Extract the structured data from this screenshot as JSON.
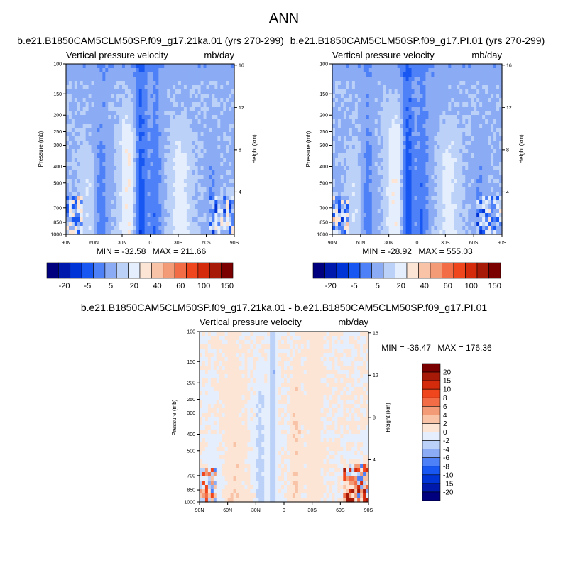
{
  "page_title": "ANN",
  "chart_data": [
    {
      "type": "heatmap",
      "title": "b.e21.B1850CAM5CLM50SP.f09_g17.21ka.01 (yrs 270-299)",
      "subtitle_left": "Vertical pressure velocity",
      "subtitle_right": "mb/day",
      "ylabel": "Pressure (mb)",
      "ylabel_right": "Height (km)",
      "x_ticks": [
        "90N",
        "60N",
        "30N",
        "0",
        "30S",
        "60S",
        "90S"
      ],
      "y_ticks": [
        "100",
        "150",
        "200",
        "250",
        "300",
        "400",
        "500",
        "700",
        "850",
        "1000"
      ],
      "y_ticks_right": [
        "16",
        "12",
        "8",
        "4"
      ],
      "stats": {
        "min_label": "MIN =",
        "min": "-32.58",
        "max_label": "MAX =",
        "max": "211.66"
      },
      "colorbar": {
        "orientation": "horizontal",
        "labels": [
          "-20",
          "-5",
          "5",
          "20",
          "40",
          "60",
          "100",
          "150"
        ],
        "colors": [
          "#00007f",
          "#0019ad",
          "#0034d6",
          "#1857f2",
          "#4e81f7",
          "#8bacf5",
          "#bcd1f8",
          "#e5eefc",
          "#fde5d6",
          "#f8c3a6",
          "#f39b76",
          "#f26d45",
          "#f0461d",
          "#d52b0d",
          "#a81a08",
          "#7a0000"
        ]
      }
    },
    {
      "type": "heatmap",
      "title": "b.e21.B1850CAM5CLM50SP.f09_g17.PI.01 (yrs 270-299)",
      "subtitle_left": "Vertical pressure velocity",
      "subtitle_right": "mb/day",
      "ylabel": "Pressure (mb)",
      "ylabel_right": "Height (km)",
      "x_ticks": [
        "90N",
        "60N",
        "30N",
        "0",
        "30S",
        "60S",
        "90S"
      ],
      "y_ticks": [
        "100",
        "150",
        "200",
        "250",
        "300",
        "400",
        "500",
        "700",
        "850",
        "1000"
      ],
      "y_ticks_right": [
        "16",
        "12",
        "8",
        "4"
      ],
      "stats": {
        "min_label": "MIN =",
        "min": "-28.92",
        "max_label": "MAX =",
        "max": "555.03"
      },
      "colorbar": {
        "orientation": "horizontal",
        "labels": [
          "-20",
          "-5",
          "5",
          "20",
          "40",
          "60",
          "100",
          "150"
        ],
        "colors": [
          "#00007f",
          "#0019ad",
          "#0034d6",
          "#1857f2",
          "#4e81f7",
          "#8bacf5",
          "#bcd1f8",
          "#e5eefc",
          "#fde5d6",
          "#f8c3a6",
          "#f39b76",
          "#f26d45",
          "#f0461d",
          "#d52b0d",
          "#a81a08",
          "#7a0000"
        ]
      }
    },
    {
      "type": "heatmap",
      "title": "b.e21.B1850CAM5CLM50SP.f09_g17.21ka.01 - b.e21.B1850CAM5CLM50SP.f09_g17.PI.01",
      "subtitle_left": "Vertical pressure velocity",
      "subtitle_right": "mb/day",
      "ylabel": "Pressure (mb)",
      "ylabel_right": "Height (km)",
      "x_ticks": [
        "90N",
        "60N",
        "30N",
        "0",
        "30S",
        "60S",
        "90S"
      ],
      "y_ticks": [
        "100",
        "150",
        "200",
        "250",
        "300",
        "400",
        "500",
        "700",
        "850",
        "1000"
      ],
      "y_ticks_right": [
        "16",
        "12",
        "8",
        "4"
      ],
      "stats": {
        "min_label": "MIN =",
        "min": "-36.47",
        "max_label": "MAX =",
        "max": "176.36"
      },
      "colorbar": {
        "orientation": "vertical",
        "labels": [
          "20",
          "15",
          "10",
          "8",
          "6",
          "4",
          "2",
          "0",
          "-2",
          "-4",
          "-6",
          "-8",
          "-10",
          "-15",
          "-20"
        ],
        "colors": [
          "#7a0000",
          "#a81a08",
          "#d52b0d",
          "#f0461d",
          "#f26d45",
          "#f39b76",
          "#f8c3a6",
          "#fde5d6",
          "#e5eefc",
          "#bcd1f8",
          "#8bacf5",
          "#4e81f7",
          "#1857f2",
          "#0034d6",
          "#0019ad",
          "#00007f"
        ]
      }
    }
  ]
}
